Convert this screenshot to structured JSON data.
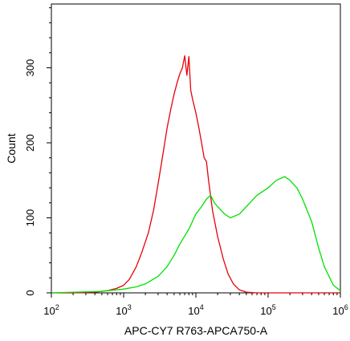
{
  "chart_data": {
    "type": "line",
    "title": "",
    "xlabel": "APC-CY7 R763-APCA750-A",
    "ylabel": "Count",
    "xscale": "log",
    "xlim": [
      100,
      1000000
    ],
    "ylim": [
      0,
      385
    ],
    "grid": false,
    "legend": "none",
    "x_ticks": [
      {
        "value": 100,
        "base": "10",
        "exp": "2"
      },
      {
        "value": 1000,
        "base": "10",
        "exp": "3"
      },
      {
        "value": 10000,
        "base": "10",
        "exp": "4"
      },
      {
        "value": 100000,
        "base": "10",
        "exp": "5"
      },
      {
        "value": 1000000,
        "base": "10",
        "exp": "6"
      }
    ],
    "y_ticks": [
      {
        "value": 0,
        "label": "0"
      },
      {
        "value": 100,
        "label": "100"
      },
      {
        "value": 200,
        "label": "200"
      },
      {
        "value": 300,
        "label": "300"
      }
    ],
    "series": [
      {
        "color": "#e8000b",
        "x": [
          100,
          200,
          400,
          600,
          800,
          1000,
          1200,
          1500,
          1800,
          2200,
          2600,
          3000,
          3500,
          4000,
          4500,
          5000,
          5500,
          6000,
          6500,
          7000,
          7500,
          8000,
          8500,
          9000,
          10000,
          11000,
          12000,
          13000,
          14000,
          15000,
          17000,
          20000,
          24000,
          28000,
          33000,
          40000,
          50000,
          70000,
          100000,
          1000000
        ],
        "y": [
          0,
          0,
          1,
          3,
          6,
          10,
          18,
          35,
          55,
          80,
          110,
          145,
          185,
          220,
          245,
          265,
          280,
          292,
          300,
          316,
          290,
          315,
          270,
          258,
          240,
          220,
          200,
          180,
          175,
          150,
          110,
          75,
          45,
          25,
          12,
          4,
          1,
          0,
          0,
          0
        ]
      },
      {
        "color": "#00e000",
        "x": [
          100,
          500,
          1000,
          1500,
          2000,
          3000,
          4000,
          5000,
          6000,
          8000,
          10000,
          12000,
          14000,
          16000,
          18000,
          20000,
          25000,
          30000,
          40000,
          50000,
          70000,
          100000,
          130000,
          170000,
          200000,
          250000,
          300000,
          400000,
          500000,
          600000,
          800000,
          1000000
        ],
        "y": [
          0,
          2,
          5,
          8,
          12,
          22,
          35,
          50,
          65,
          85,
          105,
          115,
          125,
          130,
          120,
          115,
          105,
          100,
          105,
          115,
          130,
          140,
          150,
          155,
          150,
          140,
          125,
          95,
          60,
          35,
          10,
          3
        ]
      }
    ]
  }
}
